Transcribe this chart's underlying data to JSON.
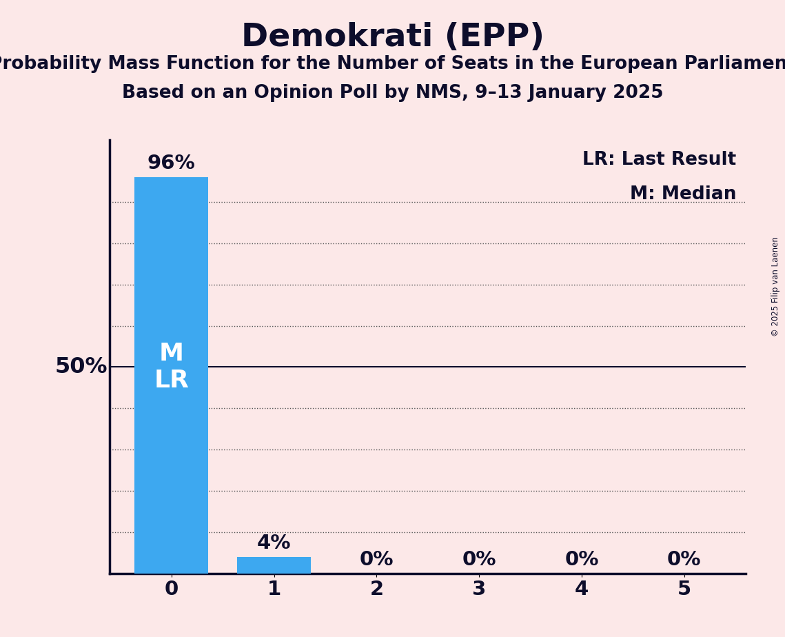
{
  "title": "Demokrati (EPP)",
  "subtitle1": "Probability Mass Function for the Number of Seats in the European Parliament",
  "subtitle2": "Based on an Opinion Poll by NMS, 9–13 January 2025",
  "copyright": "© 2025 Filip van Laenen",
  "categories": [
    0,
    1,
    2,
    3,
    4,
    5
  ],
  "values": [
    0.96,
    0.04,
    0.0,
    0.0,
    0.0,
    0.0
  ],
  "bar_color": "#3da8f0",
  "background_color": "#fce8e8",
  "y_label_50": "50%",
  "grid_y_ticks": [
    0.1,
    0.2,
    0.3,
    0.4,
    0.5,
    0.6,
    0.7,
    0.8,
    0.9
  ],
  "ylim": [
    0,
    1.05
  ],
  "title_fontsize": 34,
  "subtitle_fontsize": 19,
  "tick_fontsize": 21,
  "bar_label_fontsize": 21,
  "legend_fontsize": 19,
  "fifty_label_fontsize": 23,
  "ml_fontsize": 26,
  "text_color": "#0d0d2b"
}
